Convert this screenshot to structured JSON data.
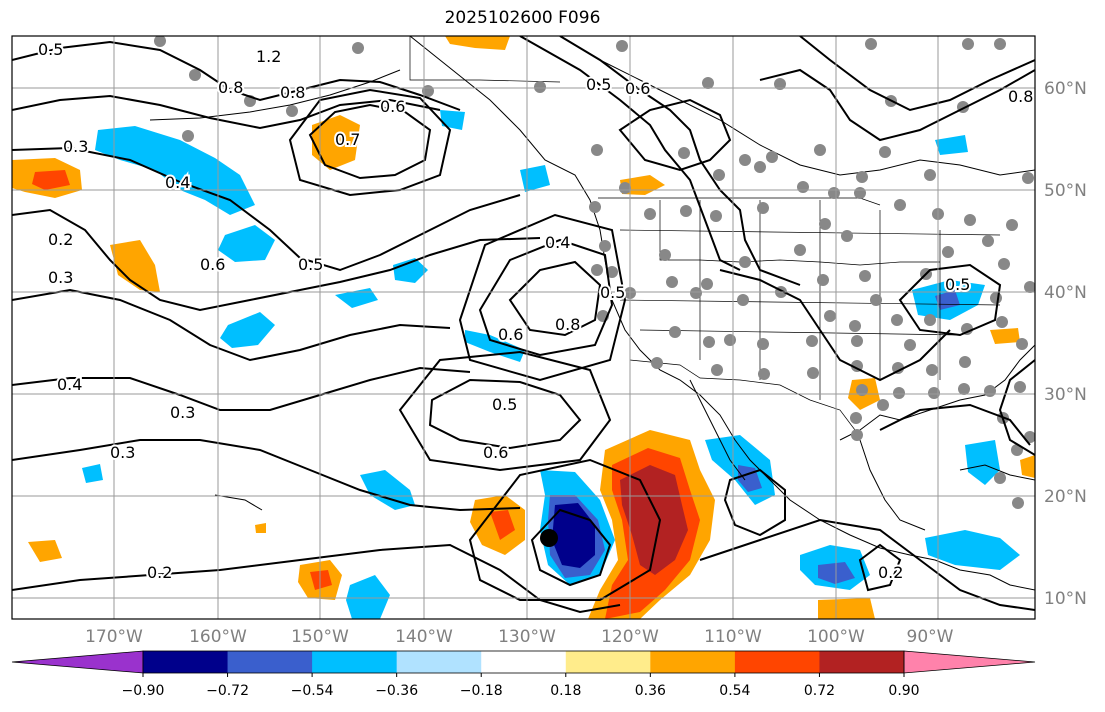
{
  "title": "2025102600 F096",
  "map": {
    "lat_labels": [
      "60°N",
      "50°N",
      "40°N",
      "30°N",
      "20°N",
      "10°N"
    ],
    "lon_labels": [
      "170°W",
      "160°W",
      "150°W",
      "140°W",
      "130°W",
      "120°W",
      "110°W",
      "100°W",
      "90°W"
    ]
  },
  "colorbar": {
    "ticks": [
      "−0.90",
      "−0.72",
      "−0.54",
      "−0.36",
      "−0.18",
      "0.18",
      "0.36",
      "0.54",
      "0.72",
      "0.90"
    ],
    "colors": [
      "#9a32cd",
      "#00008b",
      "#3a5fcd",
      "#00bfff",
      "#b0e2ff",
      "#ffffff",
      "#ffec8b",
      "#ffa500",
      "#ff4500",
      "#b22222",
      "#ff82ab"
    ]
  },
  "contours": {
    "labels": [
      "0.5",
      "1.2",
      "0.8",
      "0.8",
      "0.3",
      "0.4",
      "0.7",
      "0.6",
      "0.6",
      "0.5",
      "0.6",
      "0.2",
      "0.3",
      "0.4",
      "0.4",
      "0.5",
      "0.6",
      "0.8",
      "0.5",
      "0.5",
      "0.6",
      "0.3",
      "0.2",
      "0.3",
      "0.5",
      "0.2",
      "0.8"
    ]
  }
}
